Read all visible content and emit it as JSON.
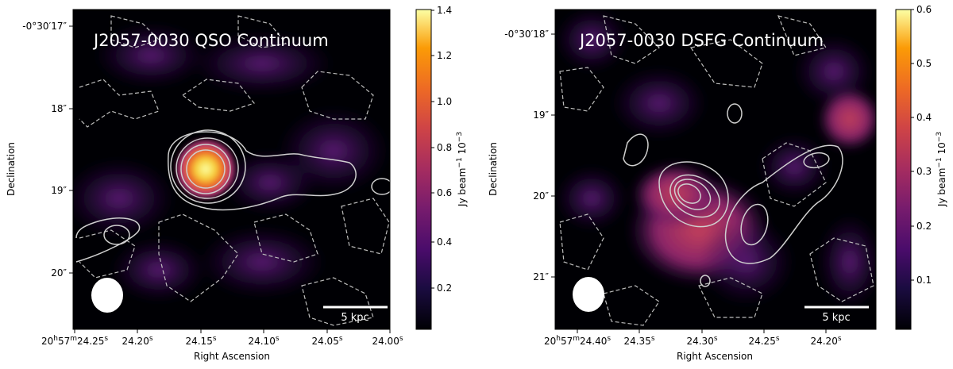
{
  "panels": [
    {
      "title": "J2057-0030 QSO Continuum",
      "xlabel": "Right Ascension",
      "ylabel": "Declination",
      "xticks": [
        {
          "h": "20",
          "m": "57",
          "s": "24.25",
          "first": true
        },
        {
          "s": "24.20"
        },
        {
          "s": "24.15"
        },
        {
          "s": "24.10"
        },
        {
          "s": "24.05"
        },
        {
          "s": "24.00"
        }
      ],
      "yticks": [
        "-0°30′17″",
        "18″",
        "19″",
        "20″"
      ],
      "colorbar": {
        "label": "Jy beam",
        "exp": "−1",
        "scale": "10",
        "scale_exp": "−3",
        "ticks": [
          "0.2",
          "0.4",
          "0.6",
          "0.8",
          "1.0",
          "1.2",
          "1.4"
        ]
      },
      "scalebar_label": "5 kpc"
    },
    {
      "title": "J2057-0030 DSFG Continuum",
      "xlabel": "Right Ascension",
      "ylabel": "Declination",
      "xticks": [
        {
          "h": "20",
          "m": "57",
          "s": "24.40",
          "first": true
        },
        {
          "s": "24.35"
        },
        {
          "s": "24.30"
        },
        {
          "s": "24.25"
        },
        {
          "s": "24.20"
        }
      ],
      "yticks": [
        "-0°30′18″",
        "19″",
        "20″",
        "21″"
      ],
      "colorbar": {
        "label": "Jy beam",
        "exp": "−1",
        "scale": "10",
        "scale_exp": "−3",
        "ticks": [
          "0.1",
          "0.2",
          "0.3",
          "0.4",
          "0.5",
          "0.6"
        ]
      },
      "scalebar_label": "5 kpc"
    }
  ],
  "colors": {
    "background_map": "#000004",
    "contour": "#cfcfcf",
    "cmap_low": "#000004",
    "cmap_mid": "#b5367a",
    "cmap_high": "#fcffa4"
  }
}
